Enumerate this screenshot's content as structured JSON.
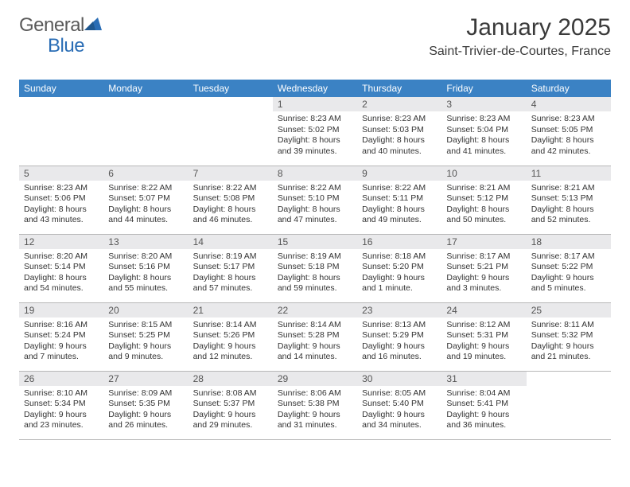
{
  "logo": {
    "part1": "General",
    "part2": "Blue",
    "tri_color": "#2a6db5"
  },
  "title": {
    "month": "January 2025",
    "location": "Saint-Trivier-de-Courtes, France"
  },
  "colors": {
    "header_bg": "#3b82c4",
    "header_text": "#ffffff",
    "daynum_bg": "#e9e9eb",
    "daynum_text": "#555555",
    "body_text": "#333333",
    "row_border": "#b8b8b8",
    "page_bg": "#ffffff",
    "title_color": "#3a3a3a"
  },
  "fonts": {
    "title_size": 30,
    "location_size": 16,
    "dayhead_size": 12,
    "daynum_size": 12,
    "cell_size": 10.5
  },
  "weekdays": [
    "Sunday",
    "Monday",
    "Tuesday",
    "Wednesday",
    "Thursday",
    "Friday",
    "Saturday"
  ],
  "weeks": [
    [
      null,
      null,
      null,
      {
        "n": "1",
        "sr": "8:23 AM",
        "ss": "5:02 PM",
        "dl": "8 hours and 39 minutes."
      },
      {
        "n": "2",
        "sr": "8:23 AM",
        "ss": "5:03 PM",
        "dl": "8 hours and 40 minutes."
      },
      {
        "n": "3",
        "sr": "8:23 AM",
        "ss": "5:04 PM",
        "dl": "8 hours and 41 minutes."
      },
      {
        "n": "4",
        "sr": "8:23 AM",
        "ss": "5:05 PM",
        "dl": "8 hours and 42 minutes."
      }
    ],
    [
      {
        "n": "5",
        "sr": "8:23 AM",
        "ss": "5:06 PM",
        "dl": "8 hours and 43 minutes."
      },
      {
        "n": "6",
        "sr": "8:22 AM",
        "ss": "5:07 PM",
        "dl": "8 hours and 44 minutes."
      },
      {
        "n": "7",
        "sr": "8:22 AM",
        "ss": "5:08 PM",
        "dl": "8 hours and 46 minutes."
      },
      {
        "n": "8",
        "sr": "8:22 AM",
        "ss": "5:10 PM",
        "dl": "8 hours and 47 minutes."
      },
      {
        "n": "9",
        "sr": "8:22 AM",
        "ss": "5:11 PM",
        "dl": "8 hours and 49 minutes."
      },
      {
        "n": "10",
        "sr": "8:21 AM",
        "ss": "5:12 PM",
        "dl": "8 hours and 50 minutes."
      },
      {
        "n": "11",
        "sr": "8:21 AM",
        "ss": "5:13 PM",
        "dl": "8 hours and 52 minutes."
      }
    ],
    [
      {
        "n": "12",
        "sr": "8:20 AM",
        "ss": "5:14 PM",
        "dl": "8 hours and 54 minutes."
      },
      {
        "n": "13",
        "sr": "8:20 AM",
        "ss": "5:16 PM",
        "dl": "8 hours and 55 minutes."
      },
      {
        "n": "14",
        "sr": "8:19 AM",
        "ss": "5:17 PM",
        "dl": "8 hours and 57 minutes."
      },
      {
        "n": "15",
        "sr": "8:19 AM",
        "ss": "5:18 PM",
        "dl": "8 hours and 59 minutes."
      },
      {
        "n": "16",
        "sr": "8:18 AM",
        "ss": "5:20 PM",
        "dl": "9 hours and 1 minute."
      },
      {
        "n": "17",
        "sr": "8:17 AM",
        "ss": "5:21 PM",
        "dl": "9 hours and 3 minutes."
      },
      {
        "n": "18",
        "sr": "8:17 AM",
        "ss": "5:22 PM",
        "dl": "9 hours and 5 minutes."
      }
    ],
    [
      {
        "n": "19",
        "sr": "8:16 AM",
        "ss": "5:24 PM",
        "dl": "9 hours and 7 minutes."
      },
      {
        "n": "20",
        "sr": "8:15 AM",
        "ss": "5:25 PM",
        "dl": "9 hours and 9 minutes."
      },
      {
        "n": "21",
        "sr": "8:14 AM",
        "ss": "5:26 PM",
        "dl": "9 hours and 12 minutes."
      },
      {
        "n": "22",
        "sr": "8:14 AM",
        "ss": "5:28 PM",
        "dl": "9 hours and 14 minutes."
      },
      {
        "n": "23",
        "sr": "8:13 AM",
        "ss": "5:29 PM",
        "dl": "9 hours and 16 minutes."
      },
      {
        "n": "24",
        "sr": "8:12 AM",
        "ss": "5:31 PM",
        "dl": "9 hours and 19 minutes."
      },
      {
        "n": "25",
        "sr": "8:11 AM",
        "ss": "5:32 PM",
        "dl": "9 hours and 21 minutes."
      }
    ],
    [
      {
        "n": "26",
        "sr": "8:10 AM",
        "ss": "5:34 PM",
        "dl": "9 hours and 23 minutes."
      },
      {
        "n": "27",
        "sr": "8:09 AM",
        "ss": "5:35 PM",
        "dl": "9 hours and 26 minutes."
      },
      {
        "n": "28",
        "sr": "8:08 AM",
        "ss": "5:37 PM",
        "dl": "9 hours and 29 minutes."
      },
      {
        "n": "29",
        "sr": "8:06 AM",
        "ss": "5:38 PM",
        "dl": "9 hours and 31 minutes."
      },
      {
        "n": "30",
        "sr": "8:05 AM",
        "ss": "5:40 PM",
        "dl": "9 hours and 34 minutes."
      },
      {
        "n": "31",
        "sr": "8:04 AM",
        "ss": "5:41 PM",
        "dl": "9 hours and 36 minutes."
      },
      null
    ]
  ],
  "labels": {
    "sunrise": "Sunrise:",
    "sunset": "Sunset:",
    "daylight": "Daylight:"
  }
}
